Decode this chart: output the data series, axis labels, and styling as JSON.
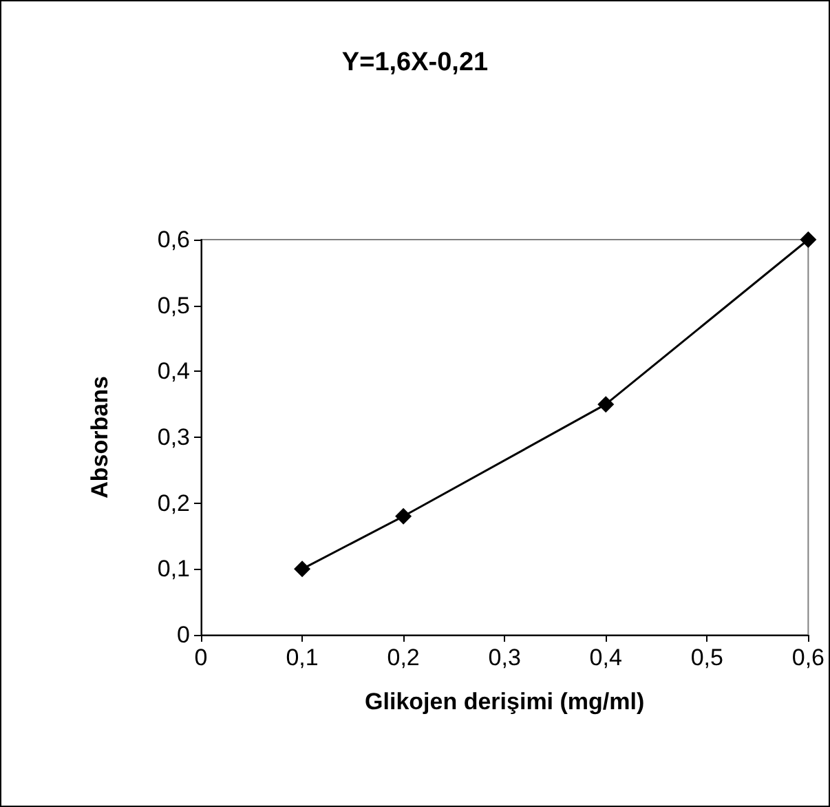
{
  "chart_data": {
    "type": "line",
    "title": "Y=1,6X-0,21",
    "xlabel": "Glikojen derişimi (mg/ml)",
    "ylabel": "Absorbans",
    "x": [
      0.1,
      0.2,
      0.4,
      0.6
    ],
    "series": [
      {
        "color": "#000000",
        "values": [
          0.1,
          0.18,
          0.35,
          0.6
        ]
      }
    ],
    "xlim": [
      0,
      0.6
    ],
    "ylim": [
      0,
      0.6
    ],
    "xticks": [
      0,
      {
        "value": 0.1,
        "label": "0,1"
      },
      {
        "value": 0.2,
        "label": "0,2"
      },
      {
        "value": 0.3,
        "label": "0,3"
      },
      {
        "value": 0.4,
        "label": "0,4"
      },
      {
        "value": 0.5,
        "label": "0,5"
      },
      {
        "value": 0.6,
        "label": "0,6"
      }
    ],
    "yticks": [
      0,
      {
        "value": 0.1,
        "label": "0,1"
      },
      {
        "value": 0.2,
        "label": "0,2"
      },
      {
        "value": 0.3,
        "label": "0,3"
      },
      {
        "value": 0.4,
        "label": "0,4"
      },
      {
        "value": 0.5,
        "label": "0,5"
      },
      {
        "value": 0.6,
        "label": "0,6"
      }
    ],
    "grid": false,
    "marker": "diamond",
    "line_style": "solid"
  }
}
